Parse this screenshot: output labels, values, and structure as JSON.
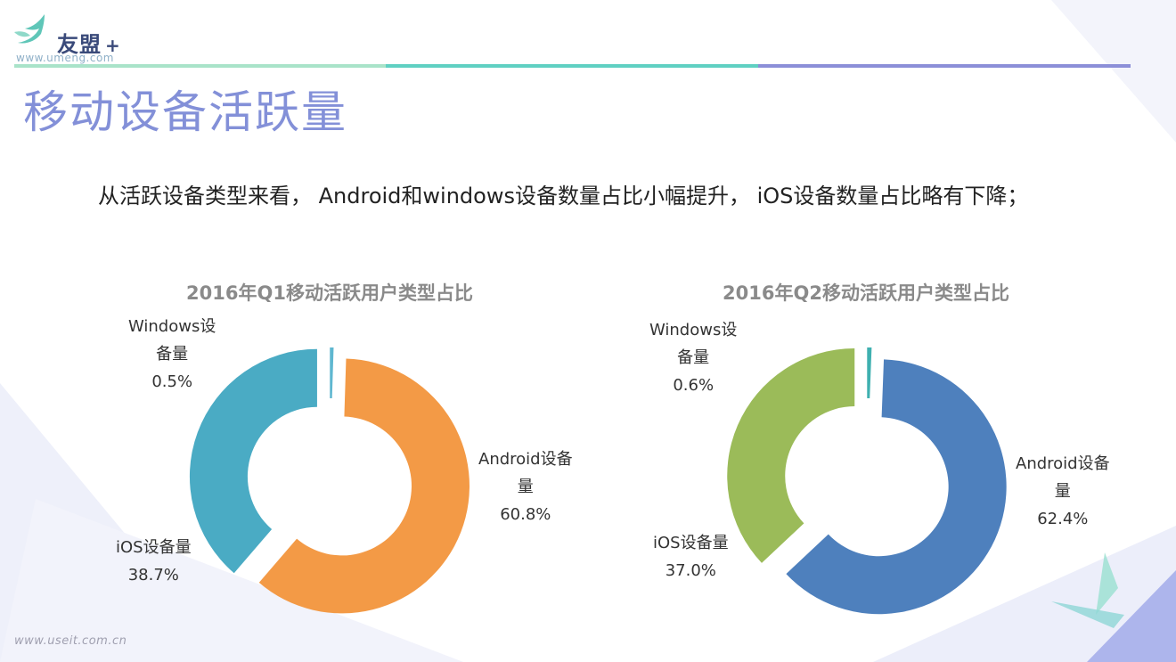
{
  "brand": {
    "name": "友盟",
    "plus": "+",
    "url": "www.umeng.com"
  },
  "header_colors": [
    "#a9e3c9",
    "#5fd0c2",
    "#8c8fd8"
  ],
  "page_title": "移动设备活跃量",
  "subtitle": "从活跃设备类型来看， Android和windows设备数量占比小幅提升， iOS设备数量占比略有下降；",
  "footer_url": "www.useit.com.cn",
  "chart_data": [
    {
      "type": "pie",
      "title": "2016年Q1移动活跃用户类型占比",
      "slices": [
        {
          "name": "Windows设备量",
          "value": 0.5,
          "value_label": "0.5%",
          "label_lines": [
            "Windows设",
            "备量"
          ],
          "color": "#5fb7d0"
        },
        {
          "name": "Android设备量",
          "value": 60.8,
          "value_label": "60.8%",
          "label_lines": [
            "Android设备",
            "量"
          ],
          "color": "#f39a46"
        },
        {
          "name": "iOS设备量",
          "value": 38.7,
          "value_label": "38.7%",
          "label_lines": [
            "iOS设备量"
          ],
          "color": "#4aabc4"
        }
      ]
    },
    {
      "type": "pie",
      "title": "2016年Q2移动活跃用户类型占比",
      "slices": [
        {
          "name": "Windows设备量",
          "value": 0.6,
          "value_label": "0.6%",
          "label_lines": [
            "Windows设",
            "备量"
          ],
          "color": "#3fb0b0"
        },
        {
          "name": "Android设备量",
          "value": 62.4,
          "value_label": "62.4%",
          "label_lines": [
            "Android设备",
            "量"
          ],
          "color": "#4e80bd"
        },
        {
          "name": "iOS设备量",
          "value": 37.0,
          "value_label": "37.0%",
          "label_lines": [
            "iOS设备量"
          ],
          "color": "#9bbb59"
        }
      ]
    }
  ]
}
